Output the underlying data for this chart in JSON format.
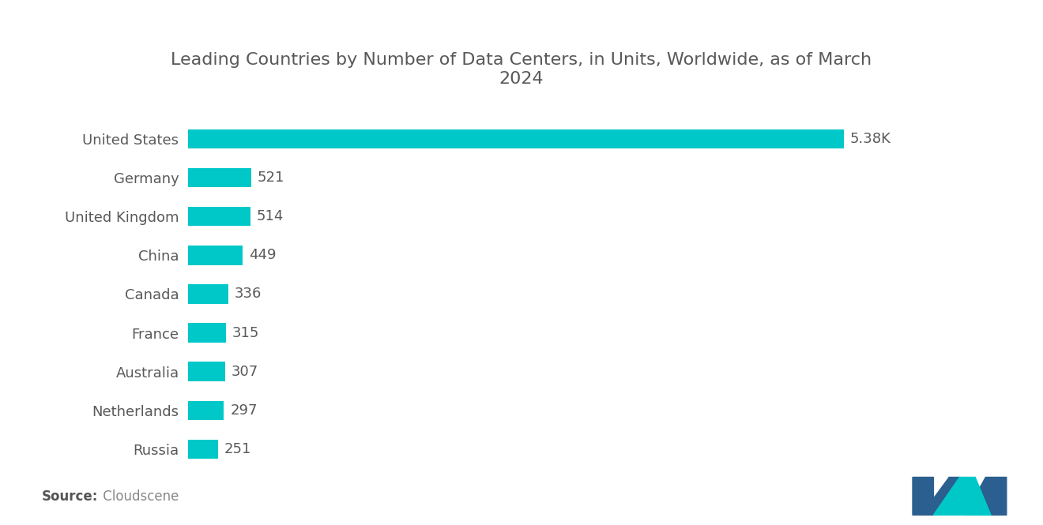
{
  "title": "Leading Countries by Number of Data Centers, in Units, Worldwide, as of March\n2024",
  "categories": [
    "United States",
    "Germany",
    "United Kingdom",
    "China",
    "Canada",
    "France",
    "Australia",
    "Netherlands",
    "Russia"
  ],
  "values": [
    5380,
    521,
    514,
    449,
    336,
    315,
    307,
    297,
    251
  ],
  "labels": [
    "5.38K",
    "521",
    "514",
    "449",
    "336",
    "315",
    "307",
    "297",
    "251"
  ],
  "bar_color": "#00C8C8",
  "background_color": "#ffffff",
  "title_color": "#595959",
  "label_color": "#595959",
  "source_bold": "Source:",
  "source_normal": " Cloudscene",
  "title_fontsize": 16,
  "label_fontsize": 13,
  "category_fontsize": 13,
  "source_fontsize": 12,
  "logo_left_color": "#2a5f8f",
  "logo_right_color": "#2a5f8f",
  "logo_teal_color": "#00C8C8"
}
